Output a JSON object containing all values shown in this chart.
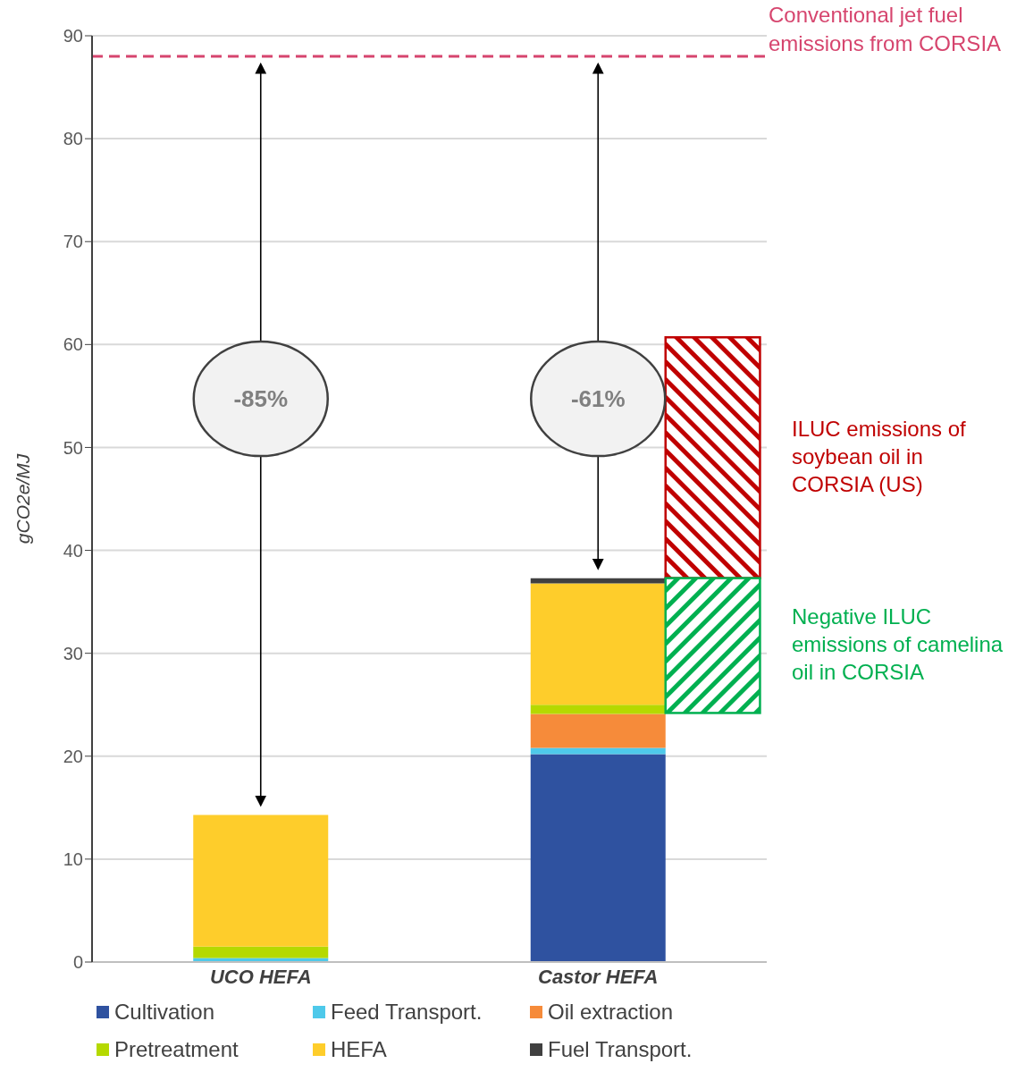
{
  "chart_data": {
    "type": "bar",
    "ylabel": "gCO2e/MJ",
    "categories": [
      "UCO HEFA",
      "Castor HEFA"
    ],
    "stacked": true,
    "ylim": [
      0,
      90
    ],
    "yticks": [
      0,
      10,
      20,
      30,
      40,
      50,
      60,
      70,
      80,
      90
    ],
    "grid": "y",
    "legend": "bottom",
    "series": [
      {
        "name": "Cultivation",
        "color": "#2f52a0",
        "values": [
          null,
          20.2
        ]
      },
      {
        "name": "Feed Transport.",
        "color": "#4ec9ea",
        "values": [
          0.4,
          0.6
        ]
      },
      {
        "name": "Oil extraction",
        "color": "#f68b3a",
        "values": [
          null,
          3.3
        ]
      },
      {
        "name": "Pretreatment",
        "color": "#b5d900",
        "values": [
          1.1,
          0.9
        ]
      },
      {
        "name": "HEFA",
        "color": "#fecd2b",
        "values": [
          12.8,
          11.8
        ]
      },
      {
        "name": "Fuel Transport.",
        "color": "#404040",
        "values": [
          null,
          0.5
        ]
      },
      {
        "name": "ILUC emissions of soybean oil in CORSIA (US)",
        "color": "#c00000",
        "values": [
          null,
          23.4
        ],
        "base": [
          null,
          37.3
        ]
      },
      {
        "name": "Negative ILUC emissions of camelina oil in CORSIA",
        "color": "#00b050",
        "values": [
          null,
          -13.1
        ],
        "base": [
          null,
          37.3
        ]
      }
    ],
    "ref_lines": [
      {
        "axis": "y",
        "value": 88,
        "label": "Conventional jet fuel emissions from CORSIA",
        "color": "#d6456e",
        "line_style": "dashed"
      }
    ],
    "annotations": [
      "-85%",
      "-61%"
    ]
  }
}
